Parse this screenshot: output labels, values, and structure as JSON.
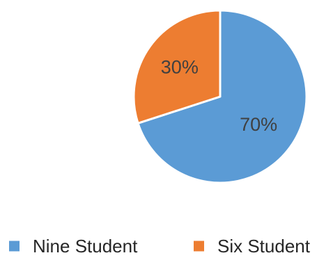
{
  "chart_data": {
    "type": "pie",
    "categories": [
      "Nine Student",
      "Six Student"
    ],
    "values": [
      70,
      30
    ],
    "data_labels": [
      "70%",
      "30%"
    ],
    "colors": [
      "#5b9bd5",
      "#ed7d31"
    ],
    "label_color": "#404040",
    "legend_text_color": "#262626",
    "title": "",
    "legend_position": "bottom",
    "start_angle_degrees": 0,
    "direction": "clockwise"
  }
}
